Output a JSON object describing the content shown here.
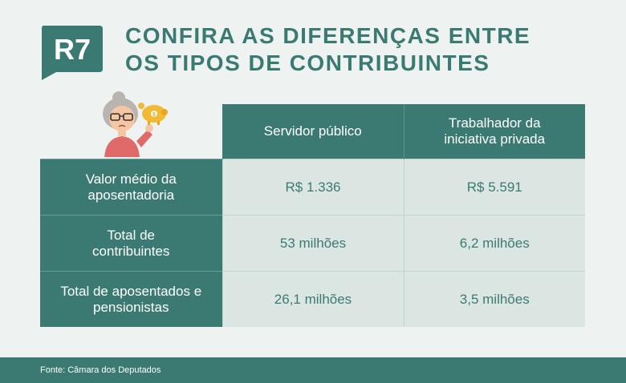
{
  "brand": {
    "logo_text": "R7"
  },
  "title": {
    "line1": "CONFIRA AS DIFERENÇAS ENTRE",
    "line2": "OS TIPOS DE CONTRIBUINTES"
  },
  "table": {
    "headers": [
      "Servidor público",
      "Trabalhador da iniciativa privada"
    ],
    "rows": [
      {
        "label": "Valor médio da aposentadoria",
        "values": [
          "R$ 1.336",
          "R$ 5.591"
        ]
      },
      {
        "label": "Total de contribuintes",
        "values": [
          "53 milhões",
          "6,2 milhões"
        ]
      },
      {
        "label": "Total de aposentados e pensionistas",
        "values": [
          "26,1 milhões",
          "3,5 milhões"
        ]
      }
    ]
  },
  "footer": {
    "source": "Fonte: Câmara dos Deputados"
  },
  "colors": {
    "accent": "#3b7a72",
    "background": "#eef3f1",
    "cell": "#dbe6e3",
    "logo": "#3b7a72"
  },
  "icons": {
    "illustration": "elderly-woman-with-piggy-bank-icon"
  }
}
